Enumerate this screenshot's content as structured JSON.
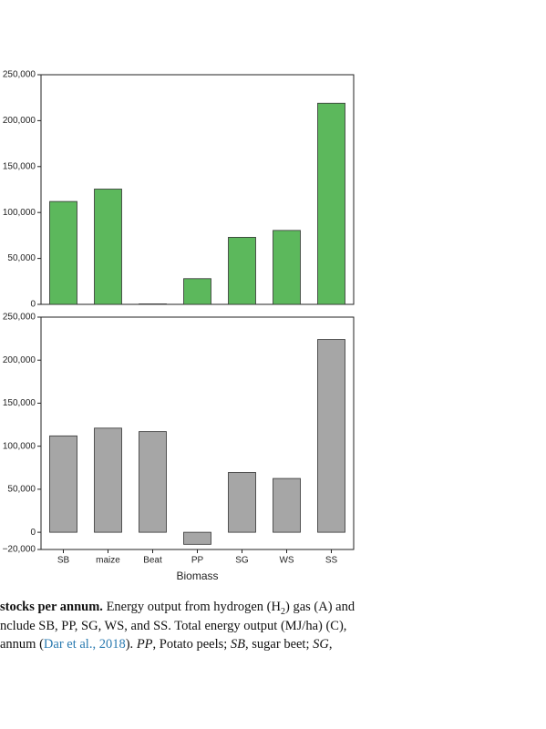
{
  "chart_data": [
    {
      "type": "bar",
      "values": [
        112000,
        125500,
        500,
        28000,
        73000,
        80500,
        219000
      ],
      "color": "#5cb85c",
      "ylim": [
        0,
        250000
      ],
      "yticks": [
        0,
        {
          "value": 50000,
          "label": "50,000"
        },
        {
          "value": 100000,
          "label": "100,000"
        },
        {
          "value": 150000,
          "label": "150,000"
        },
        {
          "value": 200000,
          "label": "200,000"
        },
        {
          "value": 250000,
          "label": "250,000"
        }
      ]
    },
    {
      "type": "bar",
      "categories": [
        "SB",
        "maize",
        "Beat",
        "PP",
        "SG",
        "WS",
        "SS"
      ],
      "values": [
        112000,
        121000,
        117000,
        -14000,
        69500,
        62500,
        224000
      ],
      "color": "#a6a6a6",
      "xlabel": "Biomass",
      "ylim": [
        -20000,
        250000
      ],
      "yticks": [
        {
          "value": -20000,
          "label": "−20,000"
        },
        0,
        {
          "value": 50000,
          "label": "50,000"
        },
        {
          "value": 100000,
          "label": "100,000"
        },
        {
          "value": 150000,
          "label": "150,000"
        },
        {
          "value": 200000,
          "label": "200,000"
        },
        {
          "value": 250000,
          "label": "250,000"
        }
      ]
    }
  ],
  "caption": [
    [
      {
        "text": "stocks per annum.",
        "style": "bold"
      },
      {
        "text": " Energy output from hydrogen (H"
      },
      {
        "text": "2",
        "style": "sub"
      },
      {
        "text": ") gas (A) and"
      }
    ],
    [
      {
        "text": "nclude SB, PP, SG, WS, and SS. Total energy output (MJ/ha) (C),"
      }
    ],
    [
      {
        "text": "annum ("
      },
      {
        "text": "Dar et al., 2018",
        "style": "link"
      },
      {
        "text": "). "
      },
      {
        "text": "PP",
        "style": "italic"
      },
      {
        "text": ", Potato peels; "
      },
      {
        "text": "SB",
        "style": "italic"
      },
      {
        "text": ", sugar beet; "
      },
      {
        "text": "SG",
        "style": "italic"
      },
      {
        "text": ","
      }
    ]
  ]
}
